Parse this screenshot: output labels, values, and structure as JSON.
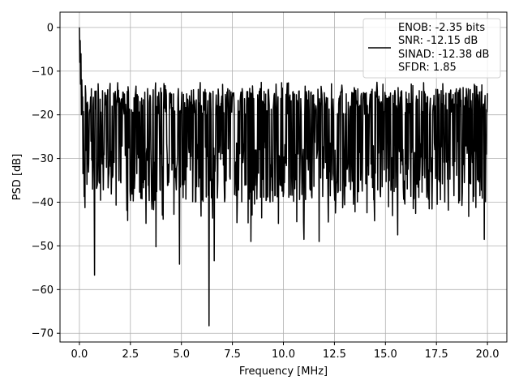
{
  "chart_data": {
    "type": "line",
    "xlabel": "Frequency [MHz]",
    "ylabel": "PSD [dB]",
    "xlim": [
      -0.95,
      20.95
    ],
    "ylim": [
      -72,
      3.5
    ],
    "xticks": [
      0.0,
      2.5,
      5.0,
      7.5,
      10.0,
      12.5,
      15.0,
      17.5,
      20.0
    ],
    "xtick_labels": [
      "0.0",
      "2.5",
      "5.0",
      "7.5",
      "10.0",
      "12.5",
      "15.0",
      "17.5",
      "20.0"
    ],
    "yticks": [
      0,
      -10,
      -20,
      -30,
      -40,
      -50,
      -60,
      -70
    ],
    "ytick_labels": [
      "0",
      "−10",
      "−20",
      "−30",
      "−40",
      "−50",
      "−60",
      "−70"
    ],
    "grid": true,
    "legend_placement": "upper-right",
    "legend_lines": [
      "ENOB: -2.35 bits",
      "SNR: -12.15 dB",
      "SINAD: -12.38 dB",
      "SFDR: 1.85"
    ],
    "series": [
      {
        "color": "#000000",
        "x_start": 0.0,
        "x_end": 20.0,
        "points": 1024,
        "baseline_db": -25.5,
        "envelope_top_db": -14,
        "envelope_bottom_db": -40,
        "peak_db": 0,
        "deep_dips": [
          {
            "x": 0.75,
            "y": -56.7
          },
          {
            "x": 3.75,
            "y": -50.2
          },
          {
            "x": 4.9,
            "y": -54.2
          },
          {
            "x": 6.35,
            "y": -68.3
          },
          {
            "x": 6.6,
            "y": -53.4
          },
          {
            "x": 8.4,
            "y": -49.0
          },
          {
            "x": 11.0,
            "y": -48.5
          },
          {
            "x": 11.75,
            "y": -49.0
          },
          {
            "x": 15.6,
            "y": -47.5
          },
          {
            "x": 19.85,
            "y": -48.5
          }
        ]
      }
    ]
  }
}
